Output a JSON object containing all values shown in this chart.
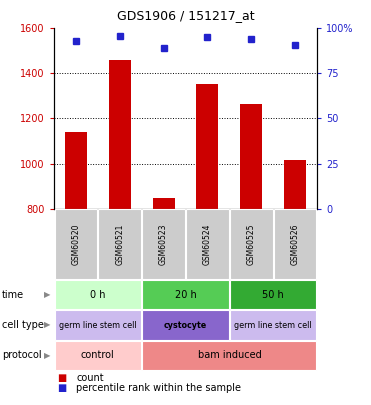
{
  "title": "GDS1906 / 151217_at",
  "samples": [
    "GSM60520",
    "GSM60521",
    "GSM60523",
    "GSM60524",
    "GSM60525",
    "GSM60526"
  ],
  "counts": [
    1140,
    1460,
    845,
    1355,
    1265,
    1015
  ],
  "percentiles": [
    93,
    96,
    89,
    95,
    94,
    91
  ],
  "ylim_left": [
    800,
    1600
  ],
  "ylim_right": [
    0,
    100
  ],
  "bar_color": "#cc0000",
  "dot_color": "#2222cc",
  "bar_width": 0.5,
  "time_groups": [
    {
      "label": "0 h",
      "span": [
        0,
        2
      ],
      "color": "#ccffcc"
    },
    {
      "label": "20 h",
      "span": [
        2,
        4
      ],
      "color": "#55cc55"
    },
    {
      "label": "50 h",
      "span": [
        4,
        6
      ],
      "color": "#33aa33"
    }
  ],
  "cell_type_groups": [
    {
      "label": "germ line stem cell",
      "span": [
        0,
        2
      ],
      "color": "#ccbbee"
    },
    {
      "label": "cystocyte",
      "span": [
        2,
        4
      ],
      "color": "#8866cc"
    },
    {
      "label": "germ line stem cell",
      "span": [
        4,
        6
      ],
      "color": "#ccbbee"
    }
  ],
  "protocol_groups": [
    {
      "label": "control",
      "span": [
        0,
        2
      ],
      "color": "#ffcccc"
    },
    {
      "label": "bam induced",
      "span": [
        2,
        6
      ],
      "color": "#ee8888"
    }
  ],
  "tick_color_left": "#cc0000",
  "tick_color_right": "#2222cc",
  "table_bg_color": "#cccccc",
  "legend_count_color": "#cc0000",
  "legend_pct_color": "#2222cc",
  "right_ytick_labels": [
    "100%",
    "75",
    "50",
    "25",
    "0"
  ],
  "right_ytick_vals": [
    100,
    75,
    50,
    25,
    0
  ],
  "left_ytick_labels": [
    "1600",
    "1400",
    "1200",
    "1000",
    "800"
  ],
  "left_ytick_vals": [
    1600,
    1400,
    1200,
    1000,
    800
  ]
}
